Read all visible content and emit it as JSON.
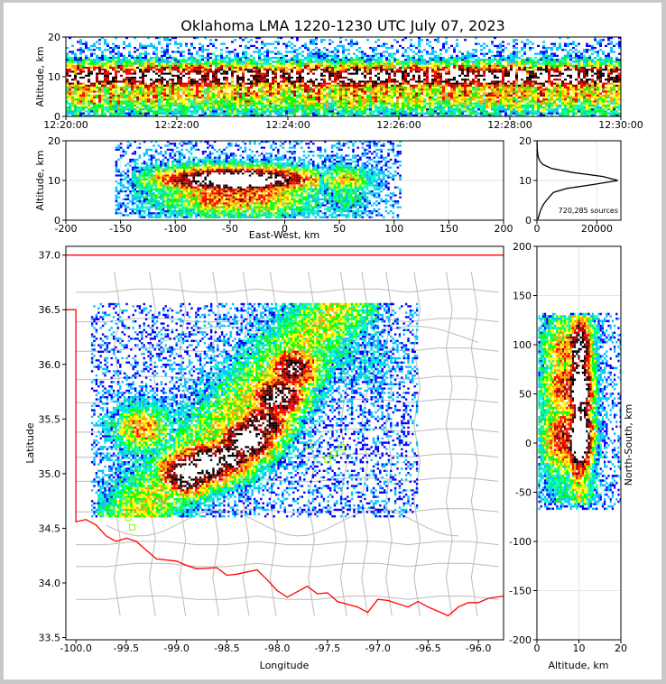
{
  "chart_data": {
    "type": "heatmap",
    "title": "Oklahoma LMA 1220-1230 UTC July 07, 2023",
    "colors": {
      "density_scale": [
        "#0000ff",
        "#00bfff",
        "#00ffbf",
        "#00ff00",
        "#ffff00",
        "#ffa500",
        "#ff0000",
        "#8b0000",
        "#000000",
        "#ffffff"
      ],
      "state_border": "#ff0000",
      "county_lines": "#bbbbbb",
      "stations": "#7fff00"
    },
    "time_height": {
      "ylabel": "Altitude, km",
      "ylim": [
        0,
        20
      ],
      "yticks": [
        "0",
        "10",
        "20"
      ],
      "xticks": [
        "12:20:00",
        "12:22:00",
        "12:24:00",
        "12:26:00",
        "12:28:00",
        "12:30:00"
      ],
      "core_altitude_km": [
        6,
        13
      ]
    },
    "ew_height": {
      "xlabel": "East-West, km",
      "ylabel": "Altitude, km",
      "xlim": [
        -200,
        200
      ],
      "ylim": [
        0,
        20
      ],
      "xticks": [
        "-200",
        "-150",
        "-100",
        "-50",
        "0",
        "50",
        "100",
        "150",
        "200"
      ],
      "yticks": [
        "0",
        "10",
        "20"
      ],
      "extent_km": [
        -150,
        100
      ]
    },
    "histogram": {
      "xticks": [
        "0",
        "20000"
      ],
      "yticks": [
        "0",
        "10",
        "20"
      ],
      "xlim": [
        0,
        28000
      ],
      "ylim": [
        0,
        20
      ],
      "annotation": "720,285 sources",
      "profile": [
        {
          "alt": 0.2,
          "count": 300
        },
        {
          "alt": 1,
          "count": 600
        },
        {
          "alt": 2,
          "count": 1000
        },
        {
          "alt": 3,
          "count": 1500
        },
        {
          "alt": 4,
          "count": 2200
        },
        {
          "alt": 5,
          "count": 3200
        },
        {
          "alt": 6,
          "count": 4300
        },
        {
          "alt": 7,
          "count": 5500
        },
        {
          "alt": 8,
          "count": 10000
        },
        {
          "alt": 9,
          "count": 19000
        },
        {
          "alt": 10,
          "count": 27000
        },
        {
          "alt": 11,
          "count": 22000
        },
        {
          "alt": 12,
          "count": 12000
        },
        {
          "alt": 13,
          "count": 5000
        },
        {
          "alt": 14,
          "count": 2000
        },
        {
          "alt": 15,
          "count": 900
        },
        {
          "alt": 16,
          "count": 400
        },
        {
          "alt": 17,
          "count": 200
        },
        {
          "alt": 18,
          "count": 100
        },
        {
          "alt": 19,
          "count": 50
        },
        {
          "alt": 20,
          "count": 20
        }
      ]
    },
    "map": {
      "xlabel": "Longitude",
      "ylabel": "Latitude",
      "xlim": [
        -100.1,
        -95.75
      ],
      "ylim": [
        33.48,
        37.08
      ],
      "xticks": [
        "-100.0",
        "-99.5",
        "-99.0",
        "-98.5",
        "-98.0",
        "-97.5",
        "-97.0",
        "-96.5",
        "-96.0"
      ],
      "yticks": [
        "33.5",
        "34.0",
        "34.5",
        "35.0",
        "35.5",
        "36.0",
        "36.5",
        "37.0"
      ],
      "storm_cells": [
        {
          "lon": -98.9,
          "lat": 35.0,
          "intensity": 1.0
        },
        {
          "lon": -98.7,
          "lat": 35.08,
          "intensity": 1.0
        },
        {
          "lon": -98.5,
          "lat": 35.15,
          "intensity": 0.9
        },
        {
          "lon": -98.3,
          "lat": 35.3,
          "intensity": 1.0
        },
        {
          "lon": -98.15,
          "lat": 35.45,
          "intensity": 0.85
        },
        {
          "lon": -98.0,
          "lat": 35.7,
          "intensity": 0.9
        },
        {
          "lon": -97.85,
          "lat": 35.95,
          "intensity": 0.8
        },
        {
          "lon": -99.35,
          "lat": 35.4,
          "intensity": 0.55
        },
        {
          "lon": -97.45,
          "lat": 36.1,
          "intensity": 0.25
        },
        {
          "lon": -97.1,
          "lat": 36.0,
          "intensity": 0.15
        }
      ],
      "stations": [
        {
          "lon": -99.52,
          "lat": 34.76
        },
        {
          "lon": -99.48,
          "lat": 34.6
        },
        {
          "lon": -99.44,
          "lat": 34.51
        },
        {
          "lon": -99.33,
          "lat": 34.7
        },
        {
          "lon": -99.08,
          "lat": 34.71
        },
        {
          "lon": -97.68,
          "lat": 35.25
        },
        {
          "lon": -97.5,
          "lat": 35.13
        },
        {
          "lon": -97.44,
          "lat": 35.18
        },
        {
          "lon": -97.36,
          "lat": 35.24
        }
      ]
    },
    "ns_height": {
      "xlabel": "Altitude, km",
      "ylabel": "North-South, km",
      "xlim": [
        0,
        20
      ],
      "ylim": [
        -200,
        200
      ],
      "xticks": [
        "0",
        "10",
        "20"
      ],
      "yticks": [
        "-200",
        "-150",
        "-100",
        "-50",
        "0",
        "50",
        "100",
        "150",
        "200"
      ],
      "extent_km": [
        -65,
        130
      ]
    }
  }
}
